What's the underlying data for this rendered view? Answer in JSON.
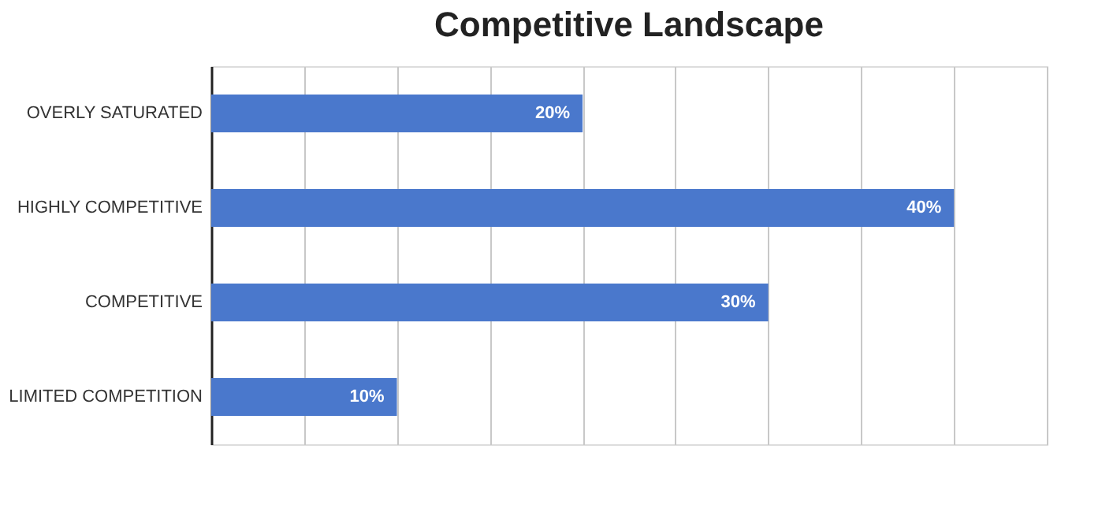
{
  "chart_data": {
    "type": "bar",
    "orientation": "horizontal",
    "title": "Competitive Landscape",
    "categories": [
      "OVERLY SATURATED",
      "HIGHLY COMPETITIVE",
      "COMPETITIVE",
      "LIMITED COMPETITION"
    ],
    "values": [
      20,
      40,
      30,
      10
    ],
    "color": "#4a78cc",
    "value_labels": [
      "20%",
      "40%",
      "30%",
      "10%"
    ],
    "xlim": [
      0,
      45
    ],
    "xticks": [
      {
        "value": 0,
        "label": null
      },
      {
        "value": 5,
        "label": null
      },
      {
        "value": 10,
        "label": null
      },
      {
        "value": 15,
        "label": null
      },
      {
        "value": 20,
        "label": null
      },
      {
        "value": 25,
        "label": null
      },
      {
        "value": 30,
        "label": null
      },
      {
        "value": 35,
        "label": null
      },
      {
        "value": 40,
        "label": null
      },
      {
        "value": 45,
        "label": null
      }
    ],
    "grid": "x",
    "tick_labels": "y"
  }
}
